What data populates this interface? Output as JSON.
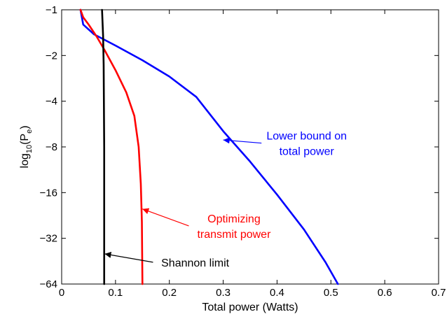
{
  "chart_data": {
    "type": "line",
    "title": "",
    "xlabel": "Total power (Watts)",
    "ylabel": {
      "base": "log",
      "sub1": "10",
      "paren_open": "(P",
      "sub2": "e",
      "paren_close": ")"
    },
    "xlim": [
      0,
      0.7
    ],
    "x_ticks": [
      "0",
      "0.1",
      "0.2",
      "0.3",
      "0.4",
      "0.5",
      "0.6",
      "0.7"
    ],
    "y_ticks": [
      "−1",
      "−2",
      "−4",
      "−8",
      "−16",
      "−32",
      "−64"
    ],
    "y_scale": "log-magnitude",
    "grid": false,
    "series": [
      {
        "color": "#0000ff",
        "points": [
          [
            0.035,
            -1
          ],
          [
            0.04,
            -1.25
          ],
          [
            0.06,
            -1.45
          ],
          [
            0.1,
            -1.72
          ],
          [
            0.15,
            -2.15
          ],
          [
            0.2,
            -2.75
          ],
          [
            0.25,
            -3.75
          ],
          [
            0.3,
            -6.3
          ],
          [
            0.35,
            -10
          ],
          [
            0.4,
            -16.5
          ],
          [
            0.45,
            -28
          ],
          [
            0.49,
            -46
          ],
          [
            0.513,
            -64
          ]
        ]
      },
      {
        "color": "#ff0000",
        "points": [
          [
            0.035,
            -1
          ],
          [
            0.04,
            -1.12
          ],
          [
            0.05,
            -1.25
          ],
          [
            0.065,
            -1.5
          ],
          [
            0.08,
            -1.85
          ],
          [
            0.1,
            -2.5
          ],
          [
            0.12,
            -3.5
          ],
          [
            0.135,
            -5
          ],
          [
            0.143,
            -8
          ],
          [
            0.147,
            -14
          ],
          [
            0.149,
            -25
          ],
          [
            0.1495,
            -40
          ],
          [
            0.15,
            -64
          ]
        ]
      },
      {
        "color": "#000000",
        "points": [
          [
            0.075,
            -1
          ],
          [
            0.077,
            -1.5
          ],
          [
            0.078,
            -2.3
          ],
          [
            0.079,
            -8
          ],
          [
            0.079,
            -64
          ]
        ]
      }
    ],
    "annotations": [
      {
        "lines": [
          "Lower bound on",
          "total power"
        ],
        "color": "#0000ff",
        "arrow_to": [
          0.3,
          -7.2
        ],
        "text_at": [
          0.455,
          -7.55
        ]
      },
      {
        "lines": [
          "Optimizing",
          "transmit power"
        ],
        "color": "#ff0000",
        "arrow_to": [
          0.15,
          -20.5
        ],
        "text_at": [
          0.32,
          -26.5
        ]
      },
      {
        "lines": [
          "Shannon limit"
        ],
        "color": "#000000",
        "arrow_to": [
          0.08,
          -40.5
        ],
        "text_at": [
          0.248,
          -46
        ]
      }
    ]
  }
}
